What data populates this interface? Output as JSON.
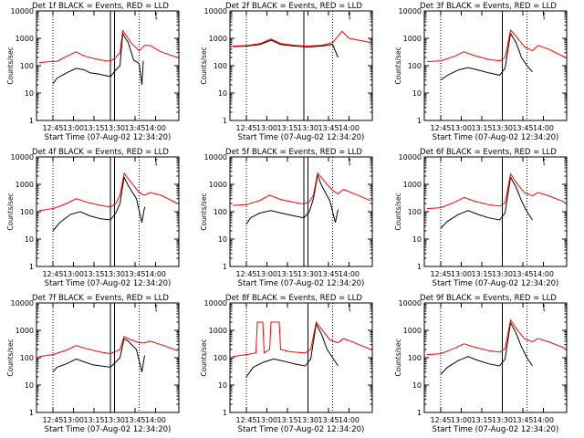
{
  "chart_data": [
    {
      "type": "line",
      "title": "Det 1f BLACK = Events, RED = LLD",
      "legend_box": "[",
      "xlabel": "Start Time (07-Aug-02 12:34:20)",
      "ylabel": "Counts/sec",
      "yscale": "log",
      "ylim": [
        1,
        10000
      ],
      "xlim_minutes_label": [
        "12:33",
        "14:17"
      ],
      "xticks": [
        "12:45",
        "13:00",
        "13:15",
        "13:30",
        "13:45",
        "14:00"
      ],
      "yticks": [
        "1",
        "10",
        "100",
        "1000",
        "10000"
      ],
      "grid": false,
      "dotted_verticals": [
        "12:45",
        "13:48"
      ],
      "solid_verticals": [
        "13:27",
        "13:30"
      ],
      "series": [
        {
          "color": "#000000",
          "x": [
            "12:45",
            "12:48",
            "12:55",
            "13:02",
            "13:08",
            "13:12",
            "13:18",
            "13:22",
            "13:27",
            "13:31",
            "13:34",
            "13:36",
            "13:38",
            "13:40",
            "13:44",
            "13:48",
            "13:50",
            "13:51"
          ],
          "values": [
            22,
            35,
            55,
            80,
            70,
            55,
            50,
            45,
            40,
            70,
            100,
            1500,
            1000,
            700,
            160,
            120,
            20,
            150
          ]
        },
        {
          "color": "#ff0000",
          "x": [
            "12:35",
            "12:42",
            "12:48",
            "12:55",
            "13:02",
            "13:06",
            "13:10",
            "13:18",
            "13:24",
            "13:27",
            "13:31",
            "13:34",
            "13:36",
            "13:38",
            "13:42",
            "13:48",
            "13:52",
            "13:56",
            "14:04",
            "14:16"
          ],
          "values": [
            130,
            140,
            145,
            220,
            320,
            250,
            210,
            170,
            150,
            150,
            200,
            300,
            1900,
            1400,
            700,
            350,
            550,
            550,
            320,
            200
          ]
        }
      ]
    },
    {
      "type": "line",
      "title": "Det 2f BLACK = Events, RED = LLD",
      "legend_box": "[",
      "xlabel": "Start Time (07-Aug-02 12:34:20)",
      "ylabel": "Counts/sec",
      "yscale": "log",
      "ylim": [
        1,
        10000
      ],
      "xticks": [
        "12:45",
        "13:00",
        "13:15",
        "13:30",
        "13:45",
        "14:00"
      ],
      "yticks": [
        "1",
        "10",
        "100",
        "1000",
        "10000"
      ],
      "grid": false,
      "dotted_verticals": [
        "12:45",
        "13:48"
      ],
      "solid_verticals": [
        "13:27"
      ],
      "series": [
        {
          "color": "#000000",
          "x": [
            "12:35",
            "12:45",
            "12:55",
            "13:03",
            "13:10",
            "13:20",
            "13:26",
            "13:30",
            "13:35",
            "13:40",
            "13:48",
            "13:52"
          ],
          "values": [
            500,
            520,
            600,
            850,
            600,
            520,
            500,
            480,
            500,
            520,
            600,
            200
          ]
        },
        {
          "color": "#ff0000",
          "x": [
            "12:35",
            "12:45",
            "12:55",
            "13:03",
            "13:10",
            "13:20",
            "13:26",
            "13:30",
            "13:35",
            "13:40",
            "13:48",
            "13:55",
            "14:00",
            "14:16"
          ],
          "values": [
            520,
            540,
            640,
            950,
            650,
            560,
            530,
            520,
            540,
            560,
            700,
            1800,
            1000,
            700
          ]
        }
      ]
    },
    {
      "type": "line",
      "title": "Det 3f BLACK = Events, RED = LLD",
      "legend_box": "[",
      "xlabel": "Start Time (07-Aug-02 12:34:20)",
      "ylabel": "Counts/sec",
      "yscale": "log",
      "ylim": [
        1,
        10000
      ],
      "xticks": [
        "12:45",
        "13:00",
        "13:15",
        "13:30",
        "13:45",
        "14:00"
      ],
      "yticks": [
        "1",
        "10",
        "100",
        "1000",
        "10000"
      ],
      "grid": false,
      "dotted_verticals": [
        "12:45",
        "13:48"
      ],
      "solid_verticals": [
        "13:30"
      ],
      "series": [
        {
          "color": "#000000",
          "x": [
            "12:45",
            "12:50",
            "12:58",
            "13:05",
            "13:12",
            "13:20",
            "13:28",
            "13:32",
            "13:36",
            "13:40",
            "13:44",
            "13:48",
            "13:52"
          ],
          "values": [
            30,
            45,
            70,
            85,
            70,
            55,
            45,
            80,
            1500,
            700,
            200,
            100,
            60
          ]
        },
        {
          "color": "#ff0000",
          "x": [
            "12:35",
            "12:45",
            "12:55",
            "13:02",
            "13:10",
            "13:20",
            "13:28",
            "13:32",
            "13:36",
            "13:40",
            "13:46",
            "13:52",
            "13:56",
            "14:04",
            "14:16"
          ],
          "values": [
            140,
            150,
            220,
            320,
            230,
            170,
            150,
            200,
            2000,
            1200,
            500,
            350,
            550,
            400,
            200
          ]
        }
      ]
    },
    {
      "type": "line",
      "title": "Det 4f BLACK = Events, RED = LLD",
      "legend_box": "[",
      "xlabel": "Start Time (07-Aug-02 12:34:20)",
      "ylabel": "Counts/sec",
      "yscale": "log",
      "ylim": [
        1,
        10000
      ],
      "xticks": [
        "12:45",
        "13:00",
        "13:15",
        "13:30",
        "13:45",
        "14:00"
      ],
      "yticks": [
        "1",
        "10",
        "100",
        "1000",
        "10000"
      ],
      "grid": false,
      "dotted_verticals": [
        "12:45",
        "13:48"
      ],
      "solid_verticals": [
        "13:27",
        "13:30"
      ],
      "series": [
        {
          "color": "#000000",
          "x": [
            "12:45",
            "12:50",
            "12:58",
            "13:05",
            "13:12",
            "13:20",
            "13:27",
            "13:31",
            "13:34",
            "13:37",
            "13:40",
            "13:46",
            "13:50",
            "13:52"
          ],
          "values": [
            20,
            40,
            80,
            100,
            70,
            55,
            50,
            90,
            200,
            1800,
            900,
            300,
            40,
            150
          ]
        },
        {
          "color": "#ff0000",
          "x": [
            "12:35",
            "12:45",
            "12:55",
            "13:02",
            "13:10",
            "13:20",
            "13:27",
            "13:31",
            "13:34",
            "13:37",
            "13:42",
            "13:48",
            "13:52",
            "13:56",
            "14:04",
            "14:16"
          ],
          "values": [
            110,
            130,
            200,
            300,
            220,
            170,
            150,
            200,
            400,
            2500,
            1200,
            500,
            400,
            500,
            400,
            200
          ]
        }
      ]
    },
    {
      "type": "line",
      "title": "Det 5f BLACK = Events, RED = LLD",
      "legend_box": "[",
      "xlabel": "Start Time (07-Aug-02 12:34:20)",
      "ylabel": "Counts/sec",
      "yscale": "log",
      "ylim": [
        1,
        10000
      ],
      "xticks": [
        "12:45",
        "13:00",
        "13:15",
        "13:30",
        "13:45",
        "14:00"
      ],
      "yticks": [
        "1",
        "10",
        "100",
        "1000",
        "10000"
      ],
      "grid": false,
      "dotted_verticals": [
        "12:45",
        "13:48"
      ],
      "solid_verticals": [
        "13:27",
        "13:30"
      ],
      "series": [
        {
          "color": "#000000",
          "x": [
            "12:45",
            "12:48",
            "12:55",
            "13:03",
            "13:10",
            "13:20",
            "13:27",
            "13:31",
            "13:34",
            "13:37",
            "13:40",
            "13:46",
            "13:50",
            "13:52"
          ],
          "values": [
            35,
            60,
            90,
            110,
            90,
            70,
            60,
            100,
            300,
            2200,
            900,
            250,
            40,
            120
          ]
        },
        {
          "color": "#ff0000",
          "x": [
            "12:35",
            "12:45",
            "12:55",
            "13:02",
            "13:10",
            "13:20",
            "13:27",
            "13:31",
            "13:34",
            "13:37",
            "13:42",
            "13:48",
            "13:52",
            "13:56",
            "14:04",
            "14:16"
          ],
          "values": [
            170,
            180,
            260,
            400,
            280,
            220,
            190,
            230,
            400,
            2600,
            1300,
            600,
            450,
            650,
            450,
            250
          ]
        }
      ]
    },
    {
      "type": "line",
      "title": "Det 6f BLACK = Events, RED = LLD",
      "legend_box": "[",
      "xlabel": "Start Time (07-Aug-02 12:34:20)",
      "ylabel": "Counts/sec",
      "yscale": "log",
      "ylim": [
        1,
        10000
      ],
      "xticks": [
        "12:45",
        "13:00",
        "13:15",
        "13:30",
        "13:45",
        "14:00"
      ],
      "yticks": [
        "1",
        "10",
        "100",
        "1000",
        "10000"
      ],
      "grid": false,
      "dotted_verticals": [
        "12:45",
        "13:48"
      ],
      "solid_verticals": [
        "13:30"
      ],
      "series": [
        {
          "color": "#000000",
          "x": [
            "12:45",
            "12:50",
            "12:58",
            "13:05",
            "13:12",
            "13:20",
            "13:28",
            "13:32",
            "13:36",
            "13:40",
            "13:44",
            "13:48",
            "13:52"
          ],
          "values": [
            25,
            45,
            80,
            110,
            80,
            60,
            50,
            90,
            1800,
            800,
            250,
            100,
            50
          ]
        },
        {
          "color": "#ff0000",
          "x": [
            "12:35",
            "12:45",
            "12:55",
            "13:02",
            "13:10",
            "13:20",
            "13:28",
            "13:32",
            "13:36",
            "13:40",
            "13:46",
            "13:52",
            "13:56",
            "14:04",
            "14:16"
          ],
          "values": [
            130,
            140,
            220,
            330,
            240,
            180,
            160,
            210,
            2400,
            1200,
            500,
            380,
            500,
            380,
            220
          ]
        }
      ]
    },
    {
      "type": "line",
      "title": "Det 7f BLACK = Events, RED = LLD",
      "legend_box": "[",
      "xlabel": "Start Time (07-Aug-02 12:34:20)",
      "ylabel": "Counts/sec",
      "yscale": "log",
      "ylim": [
        1,
        10000
      ],
      "xticks": [
        "12:45",
        "13:00",
        "13:15",
        "13:30",
        "13:45",
        "14:00"
      ],
      "yticks": [
        "1",
        "10",
        "100",
        "1000",
        "10000"
      ],
      "grid": false,
      "dotted_verticals": [
        "12:45",
        "13:48"
      ],
      "solid_verticals": [
        "13:27",
        "13:30"
      ],
      "series": [
        {
          "color": "#000000",
          "x": [
            "12:45",
            "12:48",
            "12:55",
            "13:02",
            "13:08",
            "13:14",
            "13:20",
            "13:27",
            "13:31",
            "13:34",
            "13:37",
            "13:40",
            "13:46",
            "13:50",
            "13:52"
          ],
          "values": [
            30,
            45,
            60,
            90,
            70,
            55,
            50,
            45,
            70,
            100,
            500,
            400,
            200,
            30,
            120
          ]
        },
        {
          "color": "#ff0000",
          "x": [
            "12:35",
            "12:45",
            "12:55",
            "13:02",
            "13:10",
            "13:20",
            "13:27",
            "13:31",
            "13:34",
            "13:37",
            "13:42",
            "13:48",
            "13:52",
            "13:56",
            "14:04",
            "14:16"
          ],
          "values": [
            110,
            130,
            190,
            280,
            210,
            160,
            140,
            170,
            200,
            600,
            450,
            350,
            350,
            400,
            300,
            180
          ]
        }
      ]
    },
    {
      "type": "line",
      "title": "Det 8f BLACK = Events, RED = LLD",
      "legend_box": "[",
      "xlabel": "Start Time (07-Aug-02 12:34:20)",
      "ylabel": "Counts/sec",
      "yscale": "log",
      "ylim": [
        1,
        10000
      ],
      "xticks": [
        "12:45",
        "13:00",
        "13:15",
        "13:30",
        "13:45",
        "14:00"
      ],
      "yticks": [
        "1",
        "10",
        "100",
        "1000",
        "10000"
      ],
      "grid": false,
      "dotted_verticals": [
        "12:45",
        "13:48"
      ],
      "solid_verticals": [
        "13:30"
      ],
      "series": [
        {
          "color": "#000000",
          "x": [
            "12:45",
            "12:50",
            "12:58",
            "13:05",
            "13:12",
            "13:20",
            "13:28",
            "13:32",
            "13:36",
            "13:40",
            "13:44",
            "13:48",
            "13:52"
          ],
          "values": [
            20,
            45,
            70,
            90,
            75,
            60,
            50,
            90,
            1700,
            700,
            200,
            100,
            50
          ]
        },
        {
          "color": "#ff0000",
          "x": [
            "12:35",
            "12:45",
            "12:52",
            "12:53",
            "12:57",
            "12:58",
            "13:02",
            "13:03",
            "13:09",
            "13:10",
            "13:16",
            "13:20",
            "13:28",
            "13:32",
            "13:36",
            "13:40",
            "13:46",
            "13:52",
            "13:56",
            "14:04",
            "14:16"
          ],
          "values": [
            110,
            130,
            150,
            2000,
            2000,
            150,
            200,
            2000,
            2000,
            200,
            170,
            160,
            150,
            200,
            2000,
            1100,
            450,
            350,
            500,
            350,
            200
          ]
        }
      ]
    },
    {
      "type": "line",
      "title": "Det 9f BLACK = Events, RED = LLD",
      "legend_box": "[",
      "xlabel": "Start Time (07-Aug-02 12:34:20)",
      "ylabel": "Counts/sec",
      "yscale": "log",
      "ylim": [
        1,
        10000
      ],
      "xticks": [
        "12:45",
        "13:00",
        "13:15",
        "13:30",
        "13:45",
        "14:00"
      ],
      "yticks": [
        "1",
        "10",
        "100",
        "1000",
        "10000"
      ],
      "grid": false,
      "dotted_verticals": [
        "12:45",
        "13:48"
      ],
      "solid_verticals": [
        "13:30"
      ],
      "series": [
        {
          "color": "#000000",
          "x": [
            "12:45",
            "12:50",
            "12:58",
            "13:05",
            "13:12",
            "13:20",
            "13:28",
            "13:32",
            "13:36",
            "13:40",
            "13:44",
            "13:48",
            "13:52"
          ],
          "values": [
            25,
            45,
            80,
            110,
            80,
            60,
            50,
            90,
            1900,
            800,
            250,
            100,
            50
          ]
        },
        {
          "color": "#ff0000",
          "x": [
            "12:35",
            "12:45",
            "12:55",
            "13:02",
            "13:10",
            "13:20",
            "13:28",
            "13:32",
            "13:36",
            "13:40",
            "13:46",
            "13:52",
            "13:56",
            "14:04",
            "14:16"
          ],
          "values": [
            130,
            140,
            220,
            320,
            240,
            180,
            160,
            210,
            2400,
            1200,
            500,
            380,
            500,
            380,
            220
          ]
        }
      ]
    }
  ]
}
